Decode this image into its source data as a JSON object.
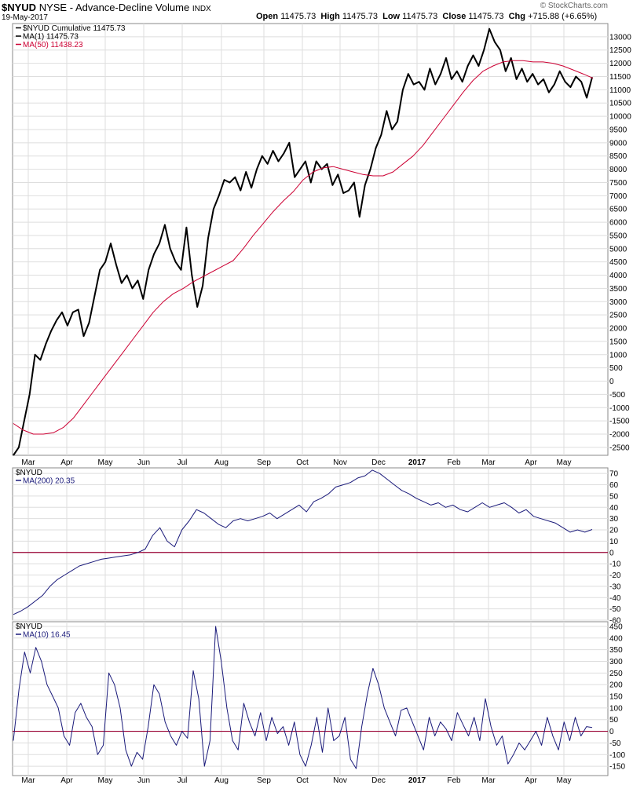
{
  "header": {
    "symbol": "$NYUD",
    "description": "NYSE - Advance-Decline Volume",
    "exchange": "INDX",
    "date": "19-May-2017",
    "open_label": "Open",
    "open": "11475.73",
    "high_label": "High",
    "high": "11475.73",
    "low_label": "Low",
    "low": "11475.73",
    "close_label": "Close",
    "close": "11475.73",
    "chg_label": "Chg",
    "chg": "+715.88 (+6.65%)",
    "credit": "© StockCharts.com"
  },
  "colors": {
    "price": "#000000",
    "ma50": "#cc0033",
    "oscillator": "#1a1a7a",
    "zero_line": "#990033",
    "grid": "#dedede"
  },
  "chart_data": [
    {
      "type": "line",
      "panel": "main",
      "legend": [
        "$NYUD Cumulative 11475.73",
        "MA(1) 11475.73",
        "MA(50) 11438.23"
      ],
      "x_labels": [
        "Mar",
        "Apr",
        "May",
        "Jun",
        "Jul",
        "Aug",
        "Sep",
        "Oct",
        "Nov",
        "Dec",
        "2017",
        "Feb",
        "Mar",
        "Apr",
        "May"
      ],
      "ylim": [
        -2800,
        13500
      ],
      "y_ticks": [
        -2500,
        -2000,
        -1500,
        -1000,
        -500,
        0,
        500,
        1000,
        1500,
        2000,
        2500,
        3000,
        3500,
        4000,
        4500,
        5000,
        5500,
        6000,
        6500,
        7000,
        7500,
        8000,
        8500,
        9000,
        9500,
        10000,
        10500,
        11000,
        11500,
        12000,
        12500,
        13000
      ],
      "series": [
        {
          "name": "$NYUD Cumulative",
          "values": [
            -2800,
            -2500,
            -1500,
            -500,
            1000,
            800,
            1400,
            1900,
            2300,
            2600,
            2100,
            2600,
            2700,
            1700,
            2200,
            3200,
            4200,
            4500,
            5200,
            4400,
            3700,
            4000,
            3500,
            3800,
            3100,
            4200,
            4800,
            5200,
            5900,
            5000,
            4500,
            4200,
            5800,
            4000,
            2800,
            3600,
            5400,
            6500,
            7000,
            7600,
            7500,
            7700,
            7200,
            7900,
            7300,
            8000,
            8500,
            8200,
            8700,
            8300,
            8600,
            9000,
            7700,
            8000,
            8300,
            7500,
            8300,
            8000,
            8200,
            7400,
            7800,
            7100,
            7200,
            7500,
            6200,
            7400,
            8000,
            8800,
            9300,
            10200,
            9500,
            9800,
            11000,
            11600,
            11200,
            11300,
            11000,
            11800,
            11200,
            11600,
            12200,
            11400,
            11700,
            11300,
            11900,
            12300,
            11900,
            12500,
            13300,
            12800,
            12500,
            11700,
            12200,
            11400,
            11800,
            11300,
            11600,
            11200,
            11400,
            10900,
            11200,
            11700,
            11300,
            11100,
            11500,
            11300,
            10700,
            11475.73
          ]
        },
        {
          "name": "MA(50)",
          "values": [
            -1600,
            -1850,
            -2000,
            -2000,
            -1950,
            -1750,
            -1400,
            -900,
            -400,
            100,
            600,
            1100,
            1600,
            2100,
            2600,
            3000,
            3300,
            3500,
            3750,
            3950,
            4150,
            4350,
            4550,
            5000,
            5500,
            5950,
            6400,
            6800,
            7150,
            7600,
            7900,
            8050,
            8100,
            8000,
            7900,
            7800,
            7750,
            7750,
            7900,
            8200,
            8500,
            8900,
            9400,
            9900,
            10400,
            10900,
            11350,
            11700,
            11900,
            12050,
            12100,
            12100,
            12050,
            12050,
            12000,
            11900,
            11750,
            11600,
            11438.23
          ]
        }
      ]
    },
    {
      "type": "line",
      "panel": "middle",
      "legend": [
        "$NYUD",
        "MA(200) 20.35"
      ],
      "x_labels": [
        "Mar",
        "Apr",
        "May",
        "Jun",
        "Jul",
        "Aug",
        "Sep",
        "Oct",
        "Nov",
        "Dec",
        "2017",
        "Feb",
        "Mar",
        "Apr",
        "May"
      ],
      "ylim": [
        -60,
        75
      ],
      "y_ticks": [
        -60,
        -50,
        -40,
        -30,
        -20,
        -10,
        0,
        10,
        20,
        30,
        40,
        50,
        60,
        70
      ],
      "series": [
        {
          "name": "MA(200)",
          "values": [
            -55,
            -52,
            -48,
            -43,
            -38,
            -30,
            -24,
            -20,
            -16,
            -12,
            -10,
            -8,
            -6,
            -5,
            -4,
            -3,
            -2,
            0,
            3,
            15,
            22,
            10,
            5,
            20,
            28,
            38,
            35,
            30,
            25,
            22,
            28,
            30,
            28,
            30,
            32,
            35,
            30,
            34,
            38,
            42,
            36,
            45,
            48,
            52,
            58,
            60,
            62,
            66,
            68,
            73,
            70,
            65,
            60,
            55,
            52,
            48,
            45,
            42,
            44,
            40,
            42,
            38,
            36,
            40,
            44,
            40,
            42,
            44,
            40,
            35,
            38,
            32,
            30,
            28,
            26,
            22,
            18,
            20,
            18,
            20.35
          ]
        }
      ]
    },
    {
      "type": "line",
      "panel": "bottom",
      "legend": [
        "$NYUD",
        "MA(10) 16.45"
      ],
      "x_labels": [
        "Mar",
        "Apr",
        "May",
        "Jun",
        "Jul",
        "Aug",
        "Sep",
        "Oct",
        "Nov",
        "Dec",
        "2017",
        "Feb",
        "Mar",
        "Apr",
        "May"
      ],
      "ylim": [
        -190,
        470
      ],
      "y_ticks": [
        -150,
        -100,
        -50,
        0,
        50,
        100,
        150,
        200,
        250,
        300,
        350,
        400,
        450
      ],
      "series": [
        {
          "name": "MA(10)",
          "values": [
            -40,
            180,
            340,
            250,
            360,
            300,
            200,
            150,
            100,
            -20,
            -60,
            80,
            120,
            60,
            20,
            -100,
            -60,
            250,
            200,
            100,
            -80,
            -150,
            -90,
            -120,
            20,
            200,
            160,
            40,
            -20,
            -60,
            0,
            -30,
            260,
            140,
            -150,
            -40,
            450,
            300,
            100,
            -40,
            -80,
            120,
            40,
            -20,
            80,
            -40,
            60,
            -10,
            20,
            -60,
            40,
            -100,
            -150,
            -60,
            60,
            -90,
            100,
            -40,
            -20,
            60,
            -120,
            -160,
            20,
            160,
            270,
            200,
            100,
            40,
            -20,
            90,
            100,
            40,
            -20,
            -80,
            60,
            -20,
            40,
            10,
            -40,
            80,
            30,
            -20,
            60,
            -40,
            140,
            20,
            -60,
            -20,
            -140,
            -100,
            -50,
            -80,
            -40,
            0,
            -60,
            60,
            -20,
            -80,
            40,
            -40,
            60,
            -20,
            20,
            16.45
          ]
        }
      ]
    }
  ]
}
